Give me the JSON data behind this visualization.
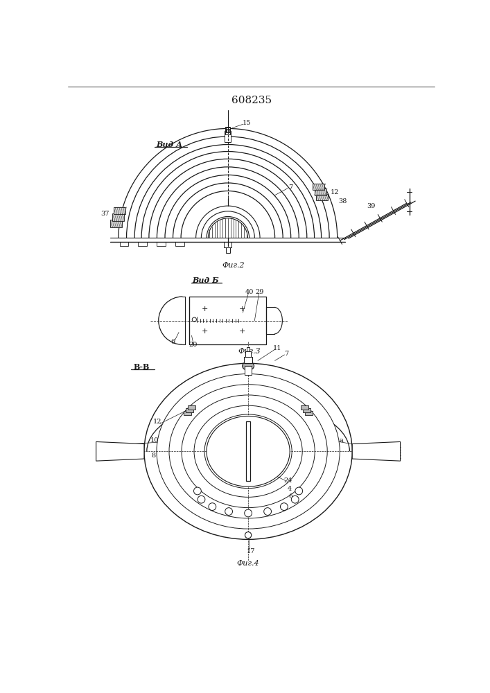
{
  "title": "608235",
  "bg_color": "#ffffff",
  "line_color": "#1a1a1a",
  "fig2_caption": "Фиг.2",
  "fig3_caption": "Фиг.3",
  "fig4_caption": "Фиг.4",
  "fig2_label": "Вид А",
  "fig3_label": "Вид Б",
  "fig4_label": "В-В"
}
